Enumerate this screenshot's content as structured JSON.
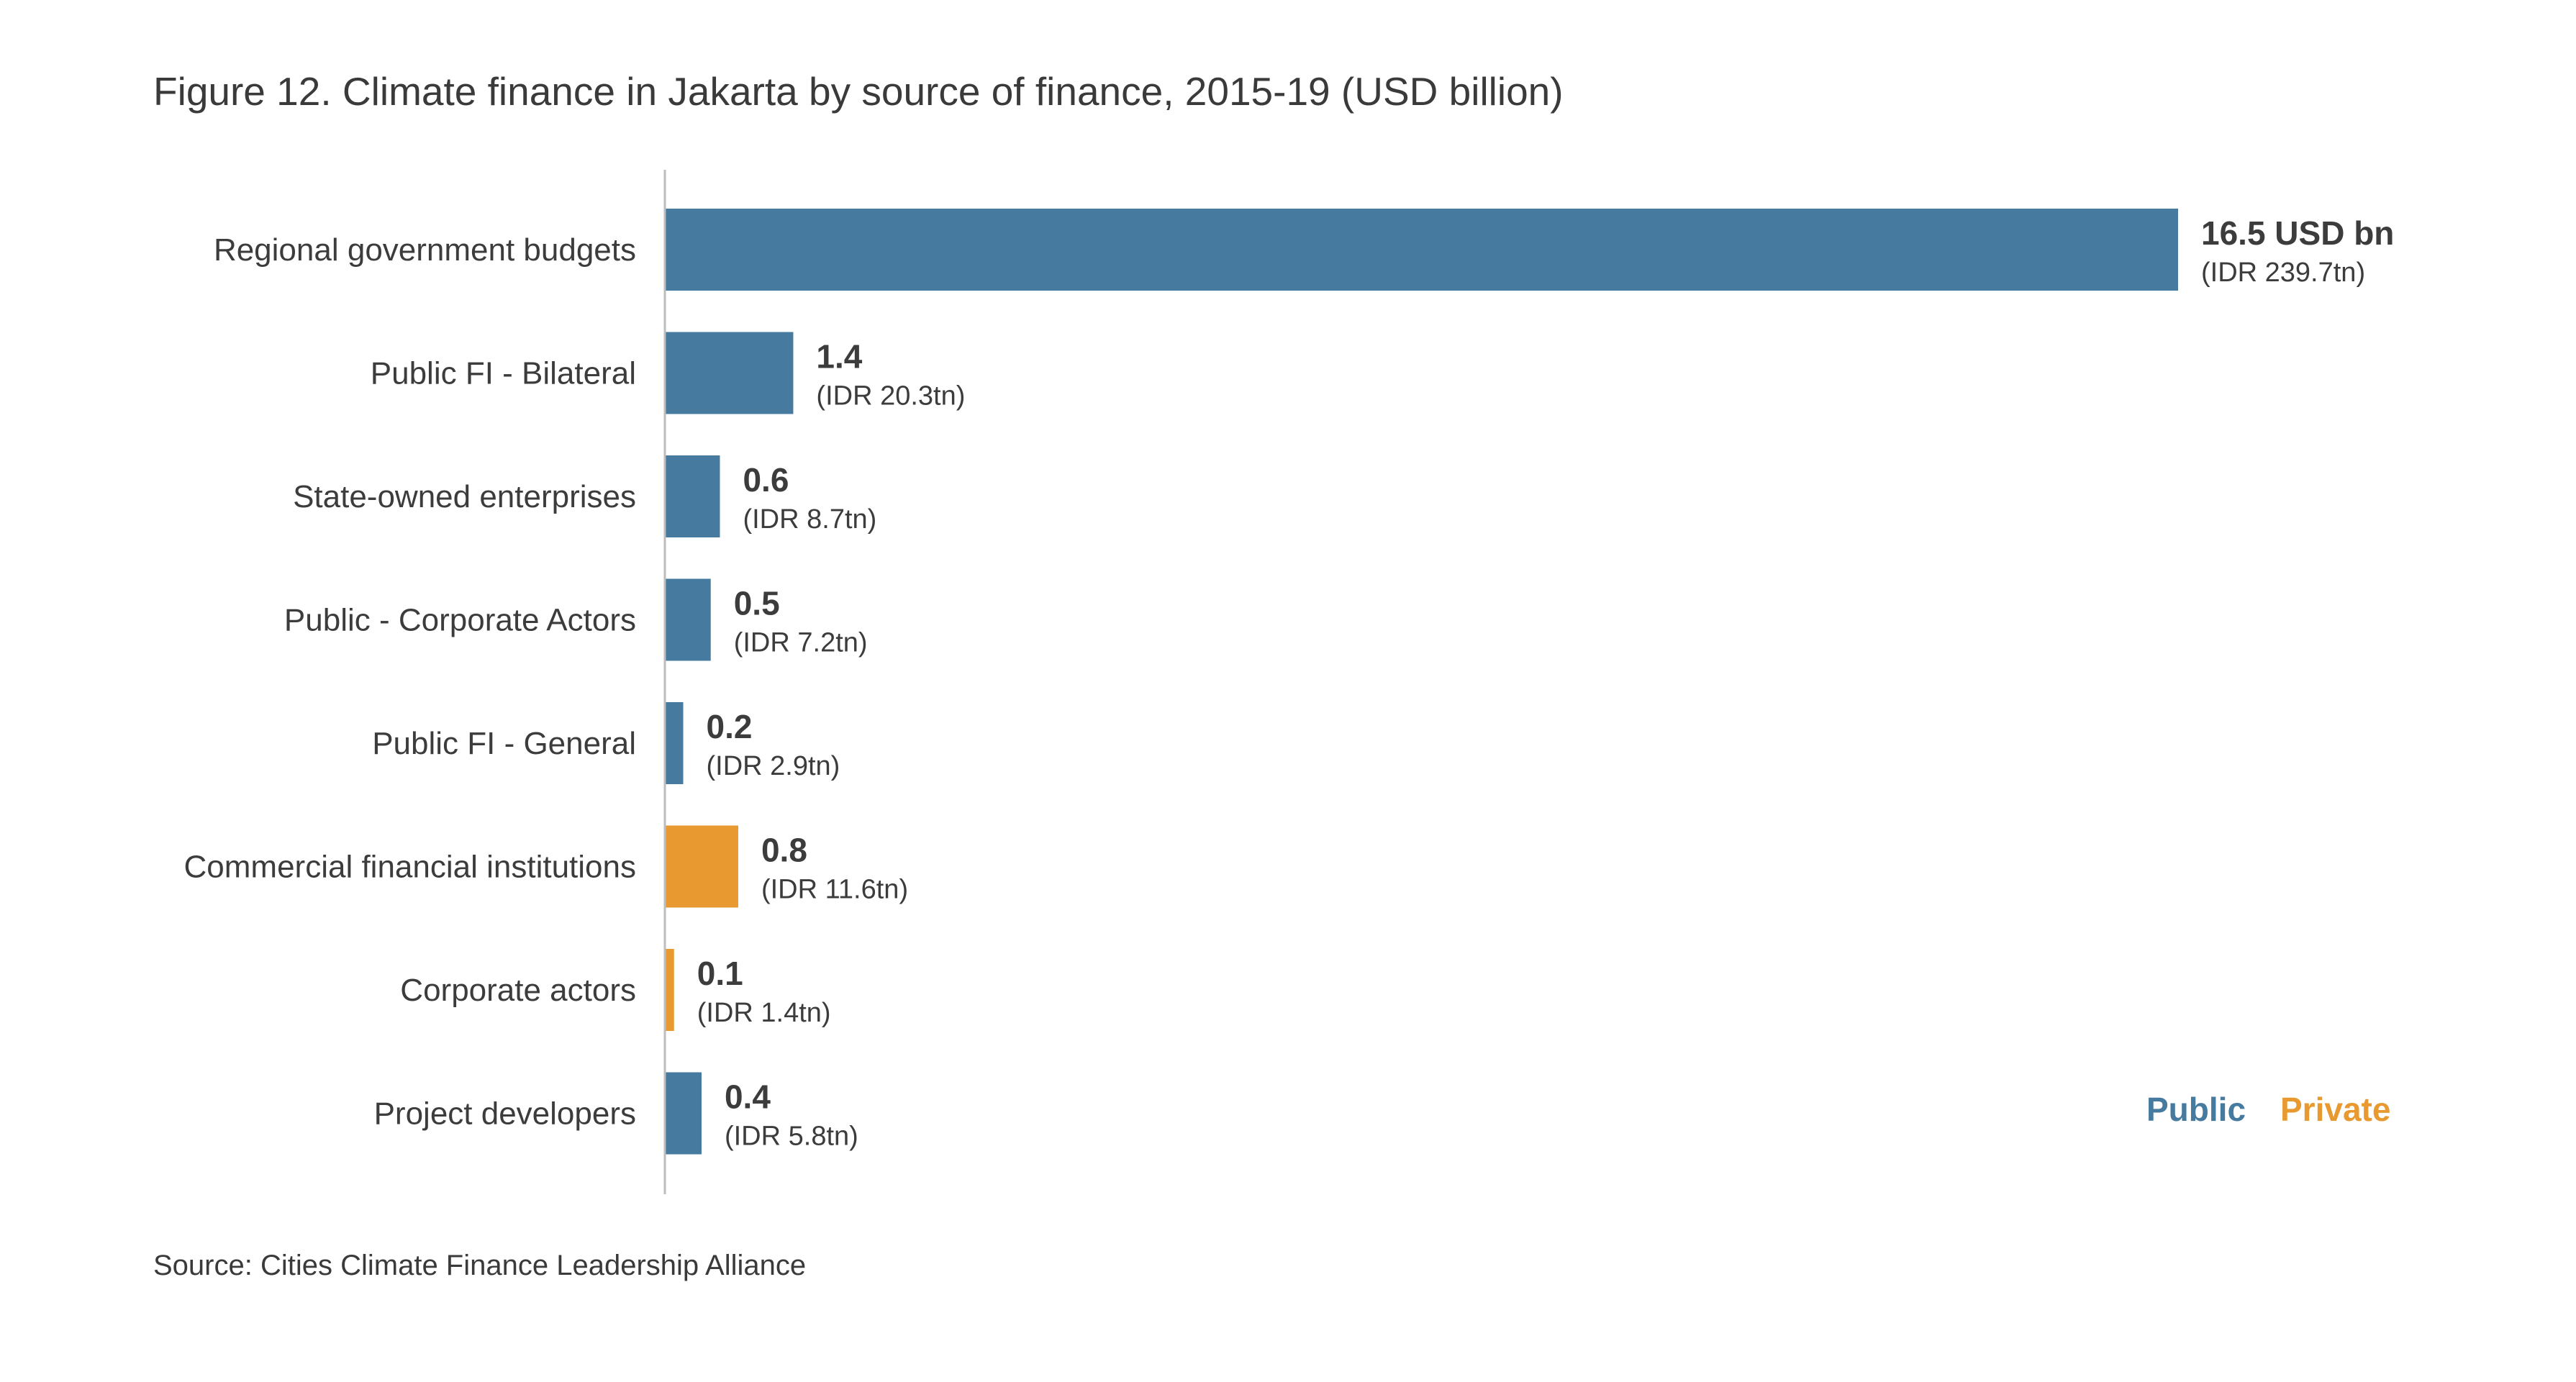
{
  "title": "Figure 12. Climate finance in Jakarta by source of finance, 2015-19 (USD billion)",
  "source": "Source: Cities Climate Finance Leadership Alliance",
  "colors": {
    "Public": "#467b9f",
    "Private": "#e89a31",
    "axis": "#bdbdbd"
  },
  "chart_data": {
    "type": "bar",
    "orientation": "horizontal",
    "title": "Figure 12. Climate finance in Jakarta by source of finance, 2015-19 (USD billion)",
    "categories": [
      "Regional government budgets",
      "Public FI - Bilateral",
      "State-owned enterprises",
      "Public - Corporate Actors",
      "Public FI - General",
      "Commercial financial institutions",
      "Corporate actors",
      "Project developers"
    ],
    "values": [
      16.5,
      1.4,
      0.6,
      0.5,
      0.2,
      0.8,
      0.1,
      0.4
    ],
    "groups": [
      "Public",
      "Public",
      "Public",
      "Public",
      "Public",
      "Private",
      "Private",
      "Public"
    ],
    "value_labels": [
      "16.5 USD bn",
      "1.4",
      "0.6",
      "0.5",
      "0.2",
      "0.8",
      "0.1",
      "0.4"
    ],
    "idr_labels": [
      "(IDR 239.7tn)",
      "(IDR 20.3tn)",
      "(IDR 8.7tn)",
      "(IDR 7.2tn)",
      "(IDR 2.9tn)",
      "(IDR 11.6tn)",
      "(IDR 1.4tn)",
      "(IDR 5.8tn)"
    ],
    "legend": [
      "Public",
      "Private"
    ],
    "legend_position": "bottom-right",
    "xlim": [
      0,
      16.5
    ],
    "grid": false
  }
}
